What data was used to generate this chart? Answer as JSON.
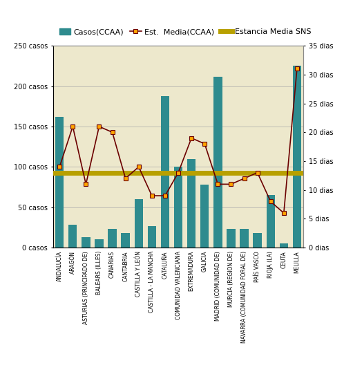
{
  "categories": [
    "ANDALUCÍA",
    "ARAGÓN",
    "ASTURIAS (PRINCIPADO DE)",
    "BALEARS (ILLES)",
    "CANARIAS",
    "CANTABRIA",
    "CASTILLA Y LEÓN",
    "CASTILLA - LA MANCHA",
    "CATALUÑA",
    "COMUNIDAD VALENCIANA",
    "EXTREMADURA",
    "GALICIA",
    "MADRID (COMUNIDAD DE)",
    "MURCIA (REGION DE)",
    "NAVARRA (COMUNIDAD FORAL DE)",
    "PAÍS VASCO",
    "RIOJA (LA)",
    "CEUTA",
    "MELILLA"
  ],
  "bar_values": [
    162,
    28,
    13,
    10,
    23,
    18,
    60,
    27,
    188,
    100,
    110,
    78,
    212,
    23,
    23,
    18,
    65,
    5,
    225
  ],
  "line_values": [
    14,
    21,
    11,
    21,
    20,
    12,
    14,
    9,
    9,
    13,
    19,
    18,
    11,
    11,
    12,
    13,
    8,
    6,
    31
  ],
  "sns_value": 13,
  "bar_color": "#2e8b8e",
  "line_color": "#6b0000",
  "marker_facecolor": "#ffa500",
  "marker_edgecolor": "#6b0000",
  "sns_color": "#b8a000",
  "background_color": "#ede8cc",
  "fig_background": "#ffffff",
  "left_ylim": [
    0,
    250
  ],
  "right_ylim": [
    0,
    35
  ],
  "left_yticks": [
    0,
    50,
    100,
    150,
    200,
    250
  ],
  "left_yticklabels": [
    "0 casos",
    "50 casos",
    "100 casos",
    "150 casos",
    "200 casos",
    "250 casos"
  ],
  "right_yticks": [
    0,
    5,
    10,
    15,
    20,
    25,
    30,
    35
  ],
  "right_yticklabels": [
    "0 dias",
    "5 dias",
    "10 dias",
    "15 dias",
    "20 dias",
    "25 dias",
    "30 dias",
    "35 dias"
  ],
  "legend_casos": "Casos(CCAA)",
  "legend_est": "Est.  Media(CCAA)",
  "legend_sns": "Estancia Media SNS",
  "grid_color": "#aaaaaa",
  "tick_fontsize": 7,
  "legend_fontsize": 8,
  "xtick_fontsize": 5.5
}
